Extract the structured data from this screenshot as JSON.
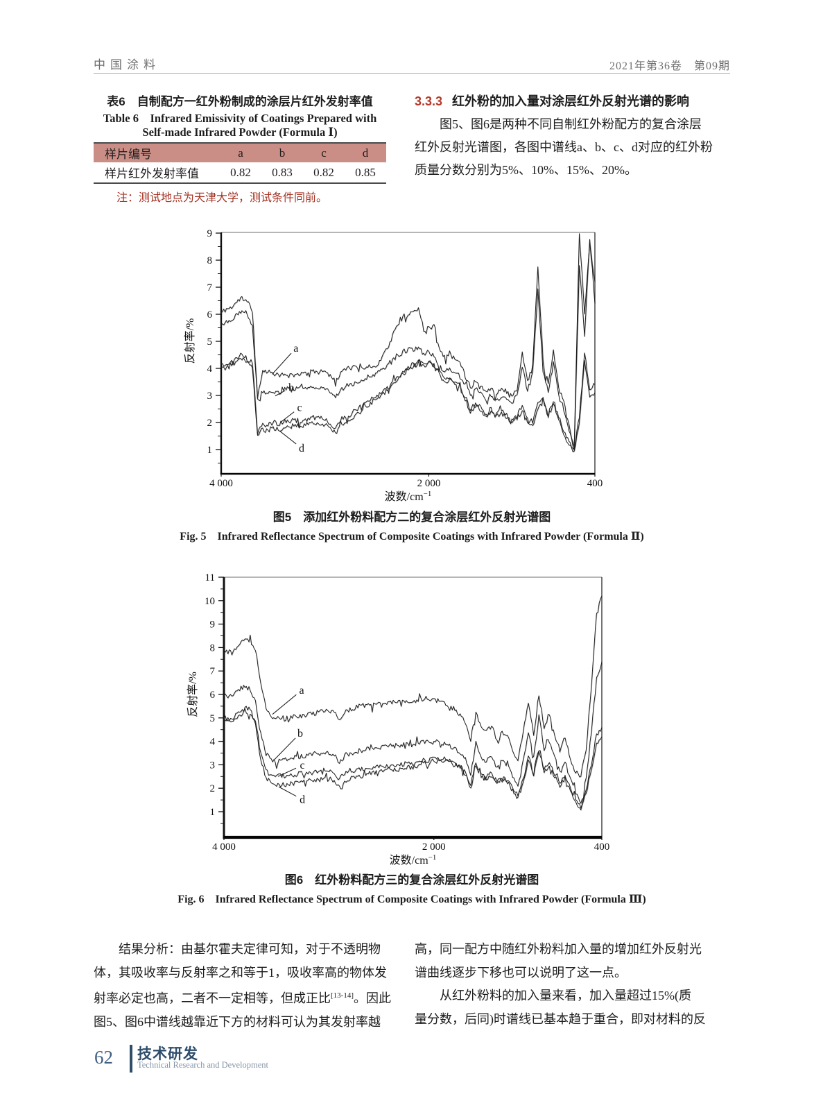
{
  "header": {
    "journal": "中国涂料",
    "issue": "2021年第36卷　第09期"
  },
  "table6": {
    "title_cn": "表6　自制配方一红外粉制成的涂层片红外发射率值",
    "title_en_1": "Table 6　Infrared Emissivity of Coatings Prepared with",
    "title_en_2": "Self-made Infrared Powder (Formula Ⅰ)",
    "header_bg": "#cb8e86",
    "columns": [
      "样片编号",
      "a",
      "b",
      "c",
      "d"
    ],
    "row_label": "样片红外发射率值",
    "row_values": [
      "0.82",
      "0.83",
      "0.82",
      "0.85"
    ],
    "note": "注：测试地点为天津大学，测试条件同前。",
    "note_color": "#a63425"
  },
  "section": {
    "number": "3.3.3",
    "number_color": "#b5392a",
    "title": "红外粉的加入量对涂层红外反射光谱的影响",
    "para": [
      "　　图5、图6是两种不同自制红外粉配方的复合涂层",
      "红外反射光谱图，各图中谱线a、b、c、d对应的红外粉",
      "质量分数分别为5%、10%、15%、20%。"
    ]
  },
  "chart_data": [
    {
      "type": "line",
      "id": "fig5",
      "title": "图5　添加红外粉料配方二的复合涂层红外反射光谱图",
      "title_en": "Fig. 5　Infrared Reflectance Spectrum of Composite Coatings with Infrared Powder (Formula Ⅱ)",
      "xlabel": "波数/cm",
      "xlabel_sup": "−1",
      "ylabel": "反射率/%",
      "x_range": [
        4000,
        400
      ],
      "y_range": [
        0.1,
        9
      ],
      "y_major": [
        1,
        2,
        3,
        4,
        5,
        6,
        7,
        8,
        9
      ],
      "x_ticks": [
        {
          "cm": 4000,
          "label": "4 000"
        },
        {
          "cm": 2000,
          "label": "2 000"
        },
        {
          "cm": 400,
          "label": "400"
        }
      ],
      "x_step": 50,
      "series": [
        {
          "name": "a",
          "values": [
            6.05,
            6.2,
            6.25,
            6.45,
            6.6,
            6.5,
            6.1,
            2.9,
            3.95,
            3.88,
            3.84,
            3.78,
            3.73,
            3.7,
            3.74,
            3.78,
            3.82,
            3.85,
            3.88,
            3.9,
            3.93,
            3.82,
            3.5,
            3.85,
            3.97,
            4.0,
            4.03,
            4.05,
            4.07,
            4.05,
            4.1,
            4.45,
            4.75,
            5.2,
            5.6,
            5.9,
            6.0,
            6.1,
            6.25,
            5.35,
            5.5,
            5.6,
            4.8,
            4.45,
            4.6,
            4.35,
            4.2,
            3.7,
            3.3,
            3.55,
            3.4,
            3.1,
            3.3,
            3.05,
            3.28,
            3.12,
            2.95,
            3.2,
            4.6,
            3.5,
            4.1,
            7.8,
            4.3,
            3.4,
            4.7,
            3.3,
            2.8,
            1.9,
            1.1,
            9.0,
            6.0,
            8.6,
            7.2
          ]
        },
        {
          "name": "b",
          "values": [
            5.6,
            5.75,
            5.8,
            6.0,
            6.1,
            5.95,
            5.6,
            2.85,
            3.1,
            3.05,
            3.15,
            3.1,
            3.2,
            3.25,
            3.2,
            3.25,
            3.3,
            3.25,
            3.3,
            3.25,
            3.2,
            3.1,
            2.9,
            3.2,
            3.35,
            3.4,
            3.5,
            3.55,
            3.6,
            3.7,
            3.8,
            3.95,
            4.1,
            4.3,
            4.5,
            4.6,
            4.7,
            4.65,
            4.75,
            4.55,
            4.65,
            4.4,
            4.1,
            3.9,
            4.05,
            3.85,
            3.6,
            3.4,
            3.0,
            3.25,
            3.1,
            2.85,
            3.05,
            2.8,
            3.0,
            2.9,
            2.7,
            3.0,
            4.1,
            3.2,
            3.8,
            6.9,
            3.9,
            3.1,
            4.2,
            3.0,
            2.4,
            1.7,
            1.0,
            7.8,
            5.2,
            8.8,
            6.4
          ]
        },
        {
          "name": "c",
          "values": [
            4.2,
            4.15,
            4.3,
            4.4,
            4.5,
            4.35,
            4.2,
            1.6,
            1.95,
            1.9,
            2.0,
            1.95,
            2.05,
            2.0,
            2.1,
            2.05,
            2.1,
            2.15,
            2.2,
            2.15,
            2.1,
            2.0,
            1.8,
            2.1,
            2.2,
            2.3,
            2.45,
            2.6,
            2.75,
            2.9,
            3.0,
            3.15,
            3.3,
            3.5,
            3.7,
            3.9,
            4.05,
            4.2,
            4.35,
            4.2,
            4.3,
            4.1,
            3.9,
            3.6,
            3.7,
            3.5,
            3.35,
            2.95,
            2.5,
            2.7,
            2.55,
            2.3,
            2.5,
            2.3,
            2.45,
            2.3,
            2.1,
            2.3,
            2.6,
            2.2,
            2.0,
            2.7,
            2.9,
            2.4,
            2.8,
            2.2,
            1.7,
            1.3,
            1.05,
            2.2,
            4.6,
            3.2,
            3.4
          ]
        },
        {
          "name": "d",
          "values": [
            4.05,
            4.0,
            4.15,
            4.25,
            4.35,
            4.2,
            4.0,
            1.5,
            1.75,
            1.7,
            1.8,
            1.75,
            1.85,
            1.8,
            1.9,
            1.85,
            1.9,
            1.95,
            2.0,
            1.95,
            1.9,
            1.8,
            1.6,
            1.9,
            2.05,
            2.15,
            2.3,
            2.45,
            2.6,
            2.75,
            2.9,
            3.05,
            3.2,
            3.4,
            3.6,
            3.8,
            3.95,
            4.1,
            4.25,
            4.1,
            4.2,
            4.0,
            3.8,
            3.5,
            3.6,
            3.4,
            3.25,
            2.85,
            2.4,
            2.6,
            2.45,
            2.2,
            2.4,
            2.2,
            2.35,
            2.2,
            2.0,
            2.15,
            2.45,
            2.05,
            1.85,
            2.5,
            2.75,
            2.25,
            2.65,
            2.05,
            1.55,
            1.15,
            0.95,
            2.0,
            4.3,
            2.9,
            3.1
          ]
        }
      ],
      "labels": [
        {
          "text": "a",
          "text_cm": 3280,
          "text_v": 4.75,
          "tip_cm": 3510,
          "tip_v": 3.78
        },
        {
          "text": "b",
          "text_cm": 3325,
          "text_v": 3.3,
          "tip_cm": 3480,
          "tip_v": 2.98
        },
        {
          "text": "c",
          "text_cm": 3245,
          "text_v": 2.55,
          "tip_cm": 3430,
          "tip_v": 2.0
        },
        {
          "text": "d",
          "text_cm": 3225,
          "text_v": 1.05,
          "tip_cm": 3435,
          "tip_v": 1.68
        }
      ]
    },
    {
      "type": "line",
      "id": "fig6",
      "title": "图6　红外粉料配方三的复合涂层红外反射光谱图",
      "title_en": "Fig. 6　Infrared Reflectance Spectrum of Composite Coatings with Infrared Powder (Formula Ⅲ)",
      "xlabel": "波数/cm",
      "xlabel_sup": "−1",
      "ylabel": "反射率/%",
      "x_range": [
        4000,
        400
      ],
      "y_range": [
        0.1,
        11
      ],
      "y_major": [
        1,
        2,
        3,
        4,
        5,
        6,
        7,
        8,
        9,
        10,
        11
      ],
      "x_ticks": [
        {
          "cm": 4000,
          "label": "4 000"
        },
        {
          "cm": 2000,
          "label": "2 000"
        },
        {
          "cm": 400,
          "label": "400"
        }
      ],
      "x_step": 50,
      "series": [
        {
          "name": "a",
          "values": [
            7.8,
            7.85,
            7.95,
            8.2,
            8.4,
            8.3,
            7.9,
            6.5,
            5.4,
            5.1,
            5.0,
            4.98,
            5.0,
            5.03,
            5.07,
            5.12,
            5.17,
            5.2,
            5.24,
            5.27,
            5.3,
            5.24,
            4.95,
            5.25,
            5.38,
            5.44,
            5.5,
            5.52,
            5.55,
            5.57,
            5.6,
            5.62,
            5.64,
            5.67,
            5.7,
            5.72,
            5.7,
            5.74,
            5.78,
            5.74,
            5.77,
            5.7,
            5.62,
            5.5,
            5.35,
            5.12,
            4.75,
            4.05,
            5.3,
            4.6,
            4.45,
            4.62,
            4.1,
            4.45,
            4.2,
            3.6,
            3.15,
            4.4,
            5.6,
            4.3,
            6.0,
            4.6,
            5.2,
            4.3,
            3.6,
            4.15,
            3.2,
            2.7,
            2.55,
            3.6,
            6.5,
            9.4,
            10.2
          ]
        },
        {
          "name": "b",
          "values": [
            5.9,
            5.95,
            6.1,
            6.25,
            6.35,
            6.2,
            5.7,
            4.3,
            3.45,
            3.25,
            3.15,
            3.2,
            3.24,
            3.28,
            3.33,
            3.38,
            3.42,
            3.45,
            3.48,
            3.48,
            3.5,
            3.44,
            3.1,
            3.4,
            3.5,
            3.56,
            3.6,
            3.65,
            3.7,
            3.74,
            3.78,
            3.81,
            3.84,
            3.8,
            3.85,
            3.9,
            3.86,
            3.92,
            4.0,
            3.95,
            4.0,
            3.92,
            3.95,
            3.82,
            3.7,
            3.5,
            3.2,
            2.5,
            4.05,
            3.3,
            3.15,
            3.32,
            2.9,
            3.15,
            2.95,
            2.5,
            2.1,
            3.1,
            4.35,
            3.3,
            5.1,
            3.6,
            4.1,
            3.3,
            2.7,
            3.1,
            2.4,
            1.8,
            1.35,
            2.4,
            4.4,
            6.7,
            7.4
          ]
        },
        {
          "name": "c",
          "values": [
            5.0,
            4.95,
            5.05,
            5.2,
            5.42,
            5.3,
            4.85,
            3.5,
            2.75,
            2.55,
            2.5,
            2.52,
            2.55,
            2.58,
            2.6,
            2.63,
            2.65,
            2.68,
            2.68,
            2.7,
            2.72,
            2.65,
            2.4,
            2.6,
            2.7,
            2.76,
            2.8,
            2.85,
            2.88,
            2.9,
            2.94,
            2.98,
            3.0,
            2.96,
            3.0,
            3.05,
            3.0,
            3.1,
            3.24,
            3.18,
            3.34,
            3.25,
            3.3,
            3.2,
            3.1,
            2.95,
            2.7,
            2.15,
            3.1,
            2.6,
            2.5,
            2.62,
            2.3,
            2.5,
            2.35,
            2.0,
            1.7,
            2.4,
            3.35,
            2.6,
            3.8,
            2.8,
            3.1,
            2.6,
            2.2,
            2.5,
            2.0,
            1.55,
            1.15,
            1.9,
            3.0,
            4.3,
            4.6
          ]
        },
        {
          "name": "d",
          "values": [
            4.88,
            4.83,
            4.95,
            5.1,
            5.32,
            5.2,
            4.7,
            3.2,
            2.45,
            2.2,
            2.12,
            2.14,
            2.18,
            2.22,
            2.26,
            2.3,
            2.32,
            2.35,
            2.36,
            2.4,
            2.4,
            2.34,
            2.05,
            2.3,
            2.4,
            2.46,
            2.52,
            2.6,
            2.64,
            2.7,
            2.74,
            2.78,
            2.82,
            2.78,
            2.84,
            2.9,
            2.86,
            2.96,
            3.1,
            3.04,
            3.2,
            3.12,
            3.2,
            3.1,
            3.0,
            2.86,
            2.6,
            2.0,
            2.95,
            2.5,
            2.4,
            2.52,
            2.2,
            2.4,
            2.25,
            1.9,
            1.6,
            2.3,
            3.15,
            2.5,
            3.6,
            2.7,
            3.0,
            2.5,
            2.1,
            2.4,
            1.9,
            1.45,
            1.05,
            1.8,
            2.85,
            3.9,
            4.2
          ]
        }
      ],
      "labels": [
        {
          "text": "a",
          "text_cm": 3260,
          "text_v": 6.18,
          "tip_cm": 3538,
          "tip_v": 5.15
        },
        {
          "text": "b",
          "text_cm": 3273,
          "text_v": 4.35,
          "tip_cm": 3524,
          "tip_v": 3.2
        },
        {
          "text": "c",
          "text_cm": 3253,
          "text_v": 2.98,
          "tip_cm": 3485,
          "tip_v": 2.5
        },
        {
          "text": "d",
          "text_cm": 3253,
          "text_v": 1.52,
          "tip_cm": 3478,
          "tip_v": 2.06
        }
      ]
    }
  ],
  "analysis": {
    "left": {
      "0": "　　结果分析：由基尔霍夫定律可知，对于不透明物",
      "1": "体，其吸收率与反射率之和等于1，吸收率高的物体发",
      "2a": "射率必定也高，二者不一定相等，但成正比",
      "2b": "。因此",
      "3": "图5、图6中谱线越靠近下方的材料可认为其发射率越"
    },
    "ref": "[13-14]",
    "right": [
      "高，同一配方中随红外粉料加入量的增加红外反射光",
      "谱曲线逐步下移也可以说明了这一点。",
      "　　从红外粉料的加入量来看，加入量超过15%(质",
      "量分数，后同)时谱线已基本趋于重合，即对材料的反"
    ]
  },
  "footer": {
    "page_number": "62",
    "section_cn": "技术研发",
    "section_en": "Technical Research and Development"
  }
}
